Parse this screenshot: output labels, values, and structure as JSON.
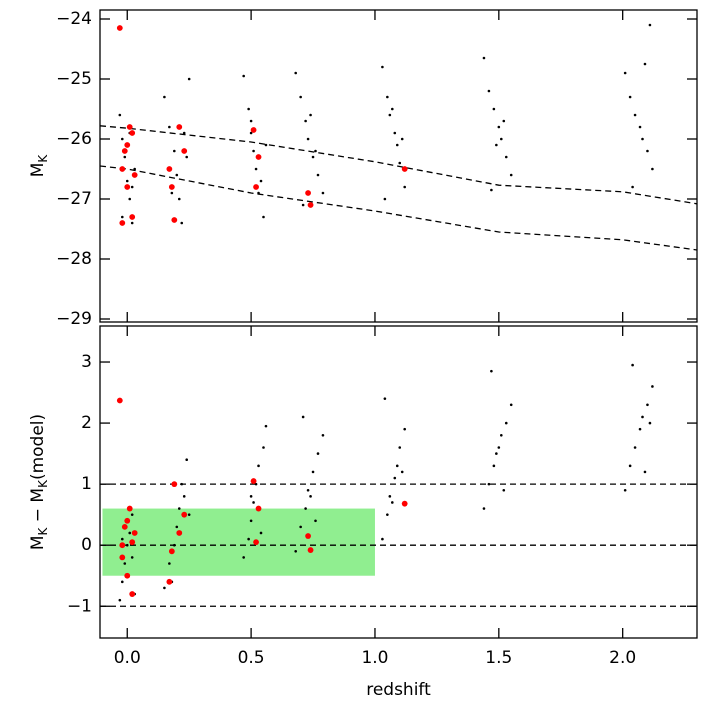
{
  "chart_data": [
    {
      "type": "scatter",
      "ylabel": [
        "M",
        "K"
      ],
      "xlim": [
        -0.11,
        2.3
      ],
      "xticks": [
        0,
        0.5,
        1,
        1.5,
        2
      ],
      "ylim": [
        -29.05,
        -23.85
      ],
      "yticks": [
        {
          "value": -24,
          "label": "−24"
        },
        {
          "value": -25,
          "label": "−25"
        },
        {
          "value": -26,
          "label": "−26"
        },
        {
          "value": -27,
          "label": "−27"
        },
        {
          "value": -28,
          "label": "−28"
        },
        {
          "value": -29,
          "label": "−29"
        }
      ],
      "series": [
        {
          "color": "#000000",
          "x": [
            -0.03,
            -0.02,
            -0.01,
            0,
            0.01,
            0.02,
            0.03,
            -0.02,
            0.01,
            0.02,
            0.15,
            0.17,
            0.19,
            0.2,
            0.21,
            0.22,
            0.24,
            0.25,
            0.18,
            0.23,
            0.47,
            0.49,
            0.5,
            0.51,
            0.52,
            0.53,
            0.55,
            0.56,
            0.5,
            0.54,
            0.68,
            0.7,
            0.72,
            0.73,
            0.75,
            0.77,
            0.79,
            0.71,
            0.74,
            0.76,
            1.03,
            1.05,
            1.06,
            1.08,
            1.09,
            1.1,
            1.12,
            1.04,
            1.07,
            1.11,
            1.44,
            1.46,
            1.48,
            1.5,
            1.51,
            1.53,
            1.55,
            1.47,
            1.52,
            1.49,
            2.01,
            2.03,
            2.05,
            2.07,
            2.08,
            2.1,
            2.12,
            2.04,
            2.09,
            2.11
          ],
          "values": [
            -25.6,
            -26.0,
            -26.3,
            -26.7,
            -27.0,
            -27.4,
            -26.5,
            -27.3,
            -25.9,
            -26.8,
            -25.3,
            -25.8,
            -26.2,
            -26.6,
            -27.0,
            -27.4,
            -26.3,
            -25.0,
            -26.9,
            -25.9,
            -24.95,
            -25.5,
            -25.9,
            -26.2,
            -26.5,
            -26.9,
            -27.3,
            -26.1,
            -25.7,
            -26.7,
            -24.9,
            -25.3,
            -25.7,
            -26.0,
            -26.3,
            -26.6,
            -26.9,
            -27.1,
            -25.6,
            -26.2,
            -24.8,
            -25.3,
            -25.6,
            -25.9,
            -26.1,
            -26.4,
            -26.8,
            -27.0,
            -25.5,
            -26.0,
            -24.65,
            -25.2,
            -25.5,
            -25.8,
            -26.0,
            -26.3,
            -26.6,
            -26.85,
            -25.7,
            -26.1,
            -24.9,
            -25.3,
            -25.6,
            -25.8,
            -26.0,
            -26.2,
            -26.5,
            -26.8,
            -24.75,
            -24.1
          ]
        },
        {
          "color": "#ff0000",
          "x": [
            -0.03,
            -0.02,
            -0.01,
            0,
            0.01,
            0.02,
            0.03,
            -0.02,
            0,
            0.02,
            0.17,
            0.19,
            0.21,
            0.23,
            0.18,
            0.51,
            0.53,
            0.52,
            0.73,
            0.74,
            1.12
          ],
          "values": [
            -24.15,
            -26.5,
            -26.2,
            -26.8,
            -25.8,
            -27.3,
            -26.6,
            -27.4,
            -26.1,
            -25.9,
            -26.5,
            -27.35,
            -25.8,
            -26.2,
            -26.8,
            -25.85,
            -26.3,
            -26.8,
            -26.9,
            -27.1,
            -26.5
          ]
        }
      ],
      "lines": [
        {
          "x": [
            -0.11,
            0,
            0.5,
            1,
            1.5,
            2,
            2.3
          ],
          "values": [
            -25.78,
            -25.82,
            -26.05,
            -26.38,
            -26.77,
            -26.88,
            -27.08
          ]
        },
        {
          "x": [
            -0.11,
            0,
            0.5,
            1,
            1.5,
            2,
            2.3
          ],
          "values": [
            -26.45,
            -26.5,
            -26.9,
            -27.2,
            -27.55,
            -27.68,
            -27.85
          ]
        }
      ]
    },
    {
      "type": "scatter",
      "ylabel": [
        "M",
        "K",
        " − M",
        "K",
        "(model)"
      ],
      "xlabel": "redshift",
      "xlim": [
        -0.11,
        2.3
      ],
      "xticks": [
        {
          "value": 0,
          "label": "0.0"
        },
        {
          "value": 0.5,
          "label": "0.5"
        },
        {
          "value": 1,
          "label": "1.0"
        },
        {
          "value": 1.5,
          "label": "1.5"
        },
        {
          "value": 2,
          "label": "2.0"
        }
      ],
      "ylim": [
        -1.52,
        3.59
      ],
      "yticks": [
        {
          "value": -1,
          "label": "−1"
        },
        0,
        1,
        2,
        3
      ],
      "region": {
        "x": [
          -0.1,
          1.0
        ],
        "y": [
          -0.5,
          0.6
        ],
        "color": "#90ee90"
      },
      "hlines": [
        -1,
        0,
        1
      ],
      "series": [
        {
          "color": "#000000",
          "x": [
            -0.03,
            -0.02,
            -0.01,
            0,
            0.01,
            0.02,
            0.03,
            -0.02,
            0.01,
            0.02,
            0.15,
            0.17,
            0.19,
            0.2,
            0.21,
            0.22,
            0.24,
            0.25,
            0.18,
            0.23,
            0.47,
            0.49,
            0.5,
            0.51,
            0.52,
            0.53,
            0.55,
            0.56,
            0.5,
            0.54,
            0.68,
            0.7,
            0.72,
            0.73,
            0.75,
            0.77,
            0.79,
            0.71,
            0.74,
            0.76,
            1.03,
            1.05,
            1.06,
            1.08,
            1.09,
            1.1,
            1.12,
            1.04,
            1.07,
            1.11,
            1.44,
            1.46,
            1.48,
            1.5,
            1.51,
            1.53,
            1.55,
            1.47,
            1.52,
            1.49,
            2.01,
            2.03,
            2.05,
            2.07,
            2.08,
            2.1,
            2.12,
            2.04,
            2.09,
            2.11
          ],
          "values": [
            -0.9,
            -0.6,
            -0.3,
            0,
            0.2,
            0.5,
            -0.8,
            0.1,
            0.6,
            -0.2,
            -0.7,
            -0.3,
            0,
            0.3,
            0.6,
            1.0,
            1.4,
            0.5,
            -0.6,
            0.8,
            -0.2,
            0.1,
            0.4,
            0.7,
            1.0,
            1.3,
            1.6,
            1.95,
            0.8,
            0.2,
            -0.1,
            0.3,
            0.6,
            0.9,
            1.2,
            1.5,
            1.8,
            2.1,
            0.8,
            0.4,
            0.1,
            0.5,
            0.8,
            1.1,
            1.3,
            1.6,
            1.9,
            2.4,
            0.7,
            1.2,
            0.6,
            1.0,
            1.3,
            1.6,
            1.8,
            2.0,
            2.3,
            2.85,
            0.9,
            1.5,
            0.9,
            1.3,
            1.6,
            1.9,
            2.1,
            2.3,
            2.6,
            2.95,
            1.2,
            2.0
          ]
        },
        {
          "color": "#ff0000",
          "x": [
            -0.03,
            -0.02,
            -0.01,
            0,
            0.01,
            0.02,
            0.03,
            -0.02,
            0,
            0.02,
            0.17,
            0.19,
            0.21,
            0.23,
            0.18,
            0.51,
            0.53,
            0.52,
            0.73,
            0.74,
            1.12
          ],
          "values": [
            2.37,
            0,
            0.3,
            -0.5,
            0.6,
            -0.8,
            0.2,
            -0.2,
            0.4,
            0.05,
            -0.6,
            1.0,
            0.2,
            0.5,
            -0.1,
            1.05,
            0.6,
            0.05,
            0.15,
            -0.08,
            0.68
          ]
        }
      ]
    }
  ]
}
